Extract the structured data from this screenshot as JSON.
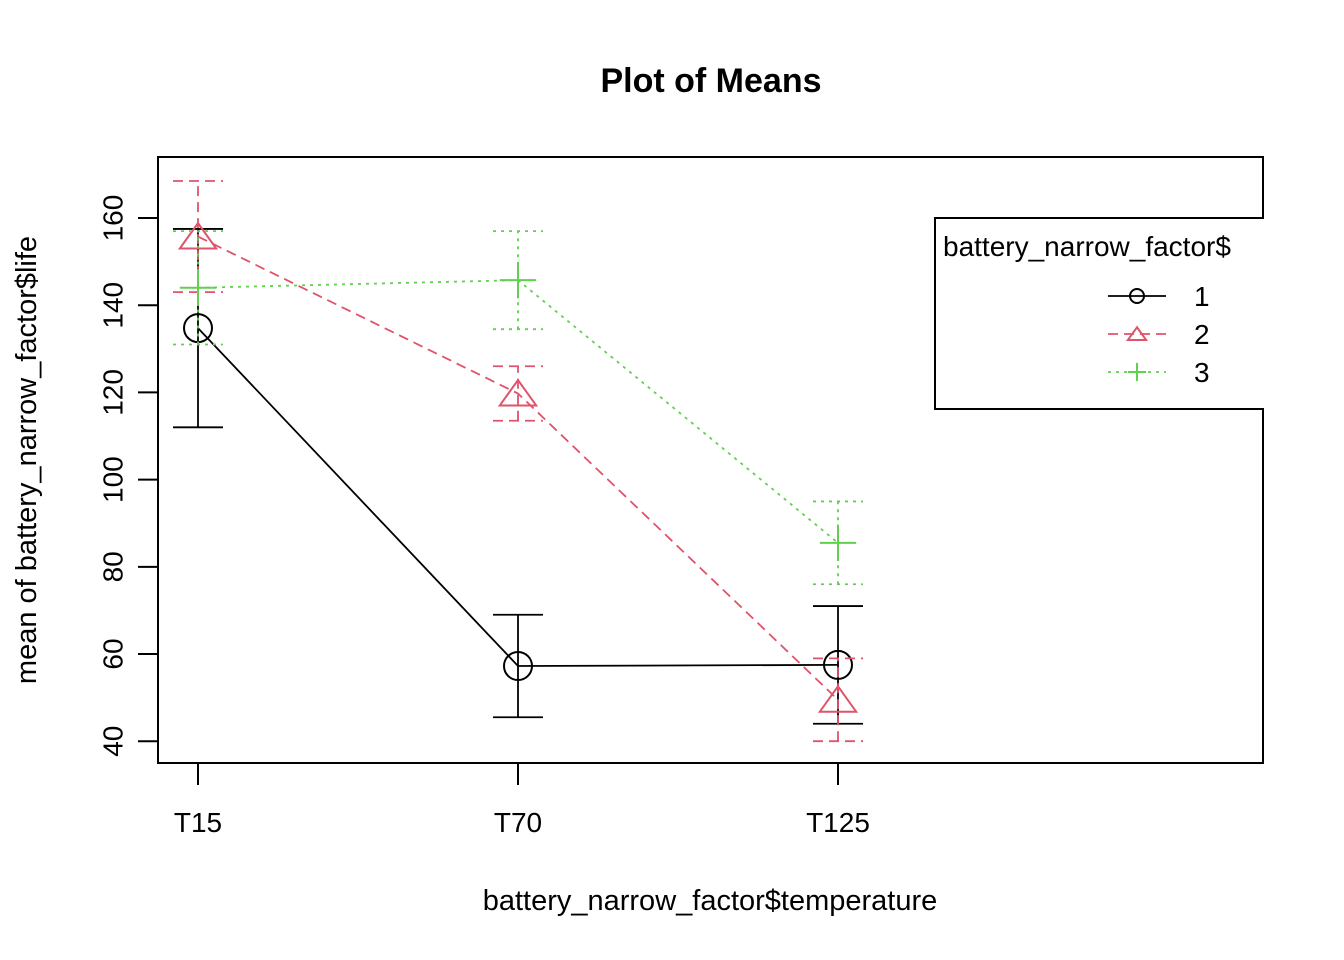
{
  "chart_data": {
    "type": "line",
    "title": "Plot of Means",
    "xlabel": "battery_narrow_factor$temperature",
    "ylabel": "mean of battery_narrow_factor$life",
    "categories": [
      "T15",
      "T70",
      "T125"
    ],
    "ylim": [
      35,
      174
    ],
    "yticks": [
      "40",
      "60",
      "80",
      "100",
      "120",
      "140",
      "160"
    ],
    "grid": false,
    "legend": {
      "title": "battery_narrow_factor$",
      "position": "top-right"
    },
    "series": [
      {
        "name": "1",
        "color": "#000000",
        "marker": "circle",
        "linestyle": "solid",
        "values": [
          134.75,
          57.25,
          57.5
        ],
        "lower": [
          112.0,
          45.5,
          44.0
        ],
        "upper": [
          157.5,
          69.0,
          71.0
        ]
      },
      {
        "name": "2",
        "color": "#DF536B",
        "marker": "triangle",
        "linestyle": "dashed",
        "values": [
          155.75,
          119.75,
          49.5
        ],
        "lower": [
          143.0,
          113.5,
          40.0
        ],
        "upper": [
          168.5,
          126.0,
          59.0
        ]
      },
      {
        "name": "3",
        "color": "#61D04F",
        "marker": "plus",
        "linestyle": "dotted",
        "values": [
          144.0,
          145.75,
          85.5
        ],
        "lower": [
          131.0,
          134.5,
          76.0
        ],
        "upper": [
          157.0,
          157.0,
          95.0
        ]
      }
    ]
  }
}
